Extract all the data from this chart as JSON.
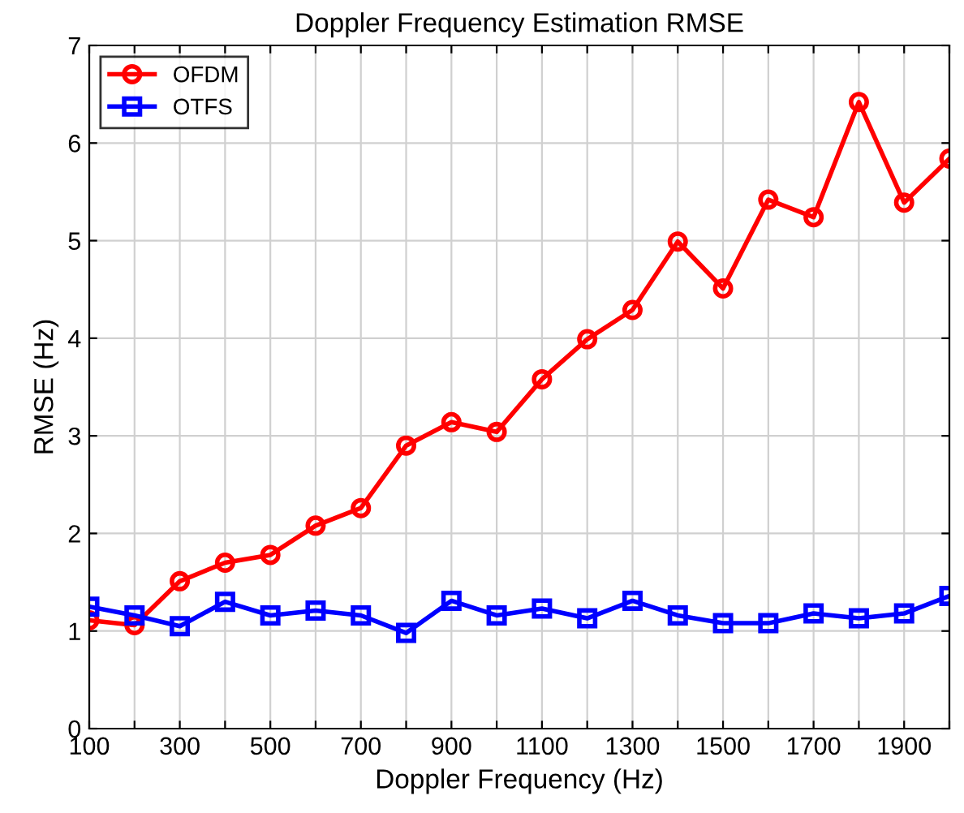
{
  "chart_data": {
    "type": "line",
    "title": "Doppler Frequency Estimation RMSE",
    "xlabel": "Doppler Frequency (Hz)",
    "ylabel": "RMSE (Hz)",
    "x": [
      100,
      200,
      300,
      400,
      500,
      600,
      700,
      800,
      900,
      1000,
      1100,
      1200,
      1300,
      1400,
      1500,
      1600,
      1700,
      1800,
      1900,
      2000
    ],
    "series": [
      {
        "name": "OFDM",
        "color": "#ff0000",
        "marker": "circle",
        "values": [
          1.11,
          1.06,
          1.51,
          1.7,
          1.78,
          2.08,
          2.26,
          2.9,
          3.14,
          3.04,
          3.58,
          3.99,
          4.29,
          4.99,
          4.51,
          5.42,
          5.24,
          6.42,
          5.39,
          5.84
        ]
      },
      {
        "name": "OTFS",
        "color": "#0000ff",
        "marker": "square",
        "values": [
          1.25,
          1.16,
          1.05,
          1.3,
          1.16,
          1.21,
          1.16,
          0.98,
          1.31,
          1.16,
          1.23,
          1.13,
          1.31,
          1.16,
          1.08,
          1.08,
          1.18,
          1.13,
          1.18,
          1.36
        ]
      }
    ],
    "xlim": [
      100,
      2000
    ],
    "ylim": [
      0,
      7
    ],
    "xticks": [
      100,
      {
        "value": 200,
        "label": null
      },
      300,
      {
        "value": 400,
        "label": null
      },
      500,
      {
        "value": 600,
        "label": null
      },
      700,
      {
        "value": 800,
        "label": null
      },
      900,
      {
        "value": 1000,
        "label": null
      },
      1100,
      {
        "value": 1200,
        "label": null
      },
      1300,
      {
        "value": 1400,
        "label": null
      },
      1500,
      {
        "value": 1600,
        "label": null
      },
      1700,
      {
        "value": 1800,
        "label": null
      },
      1900,
      {
        "value": 2000,
        "label": null
      }
    ],
    "yticks": [
      0,
      1,
      2,
      3,
      4,
      5,
      6,
      7
    ],
    "grid": true,
    "legend": "top left",
    "line_style": "solid"
  }
}
